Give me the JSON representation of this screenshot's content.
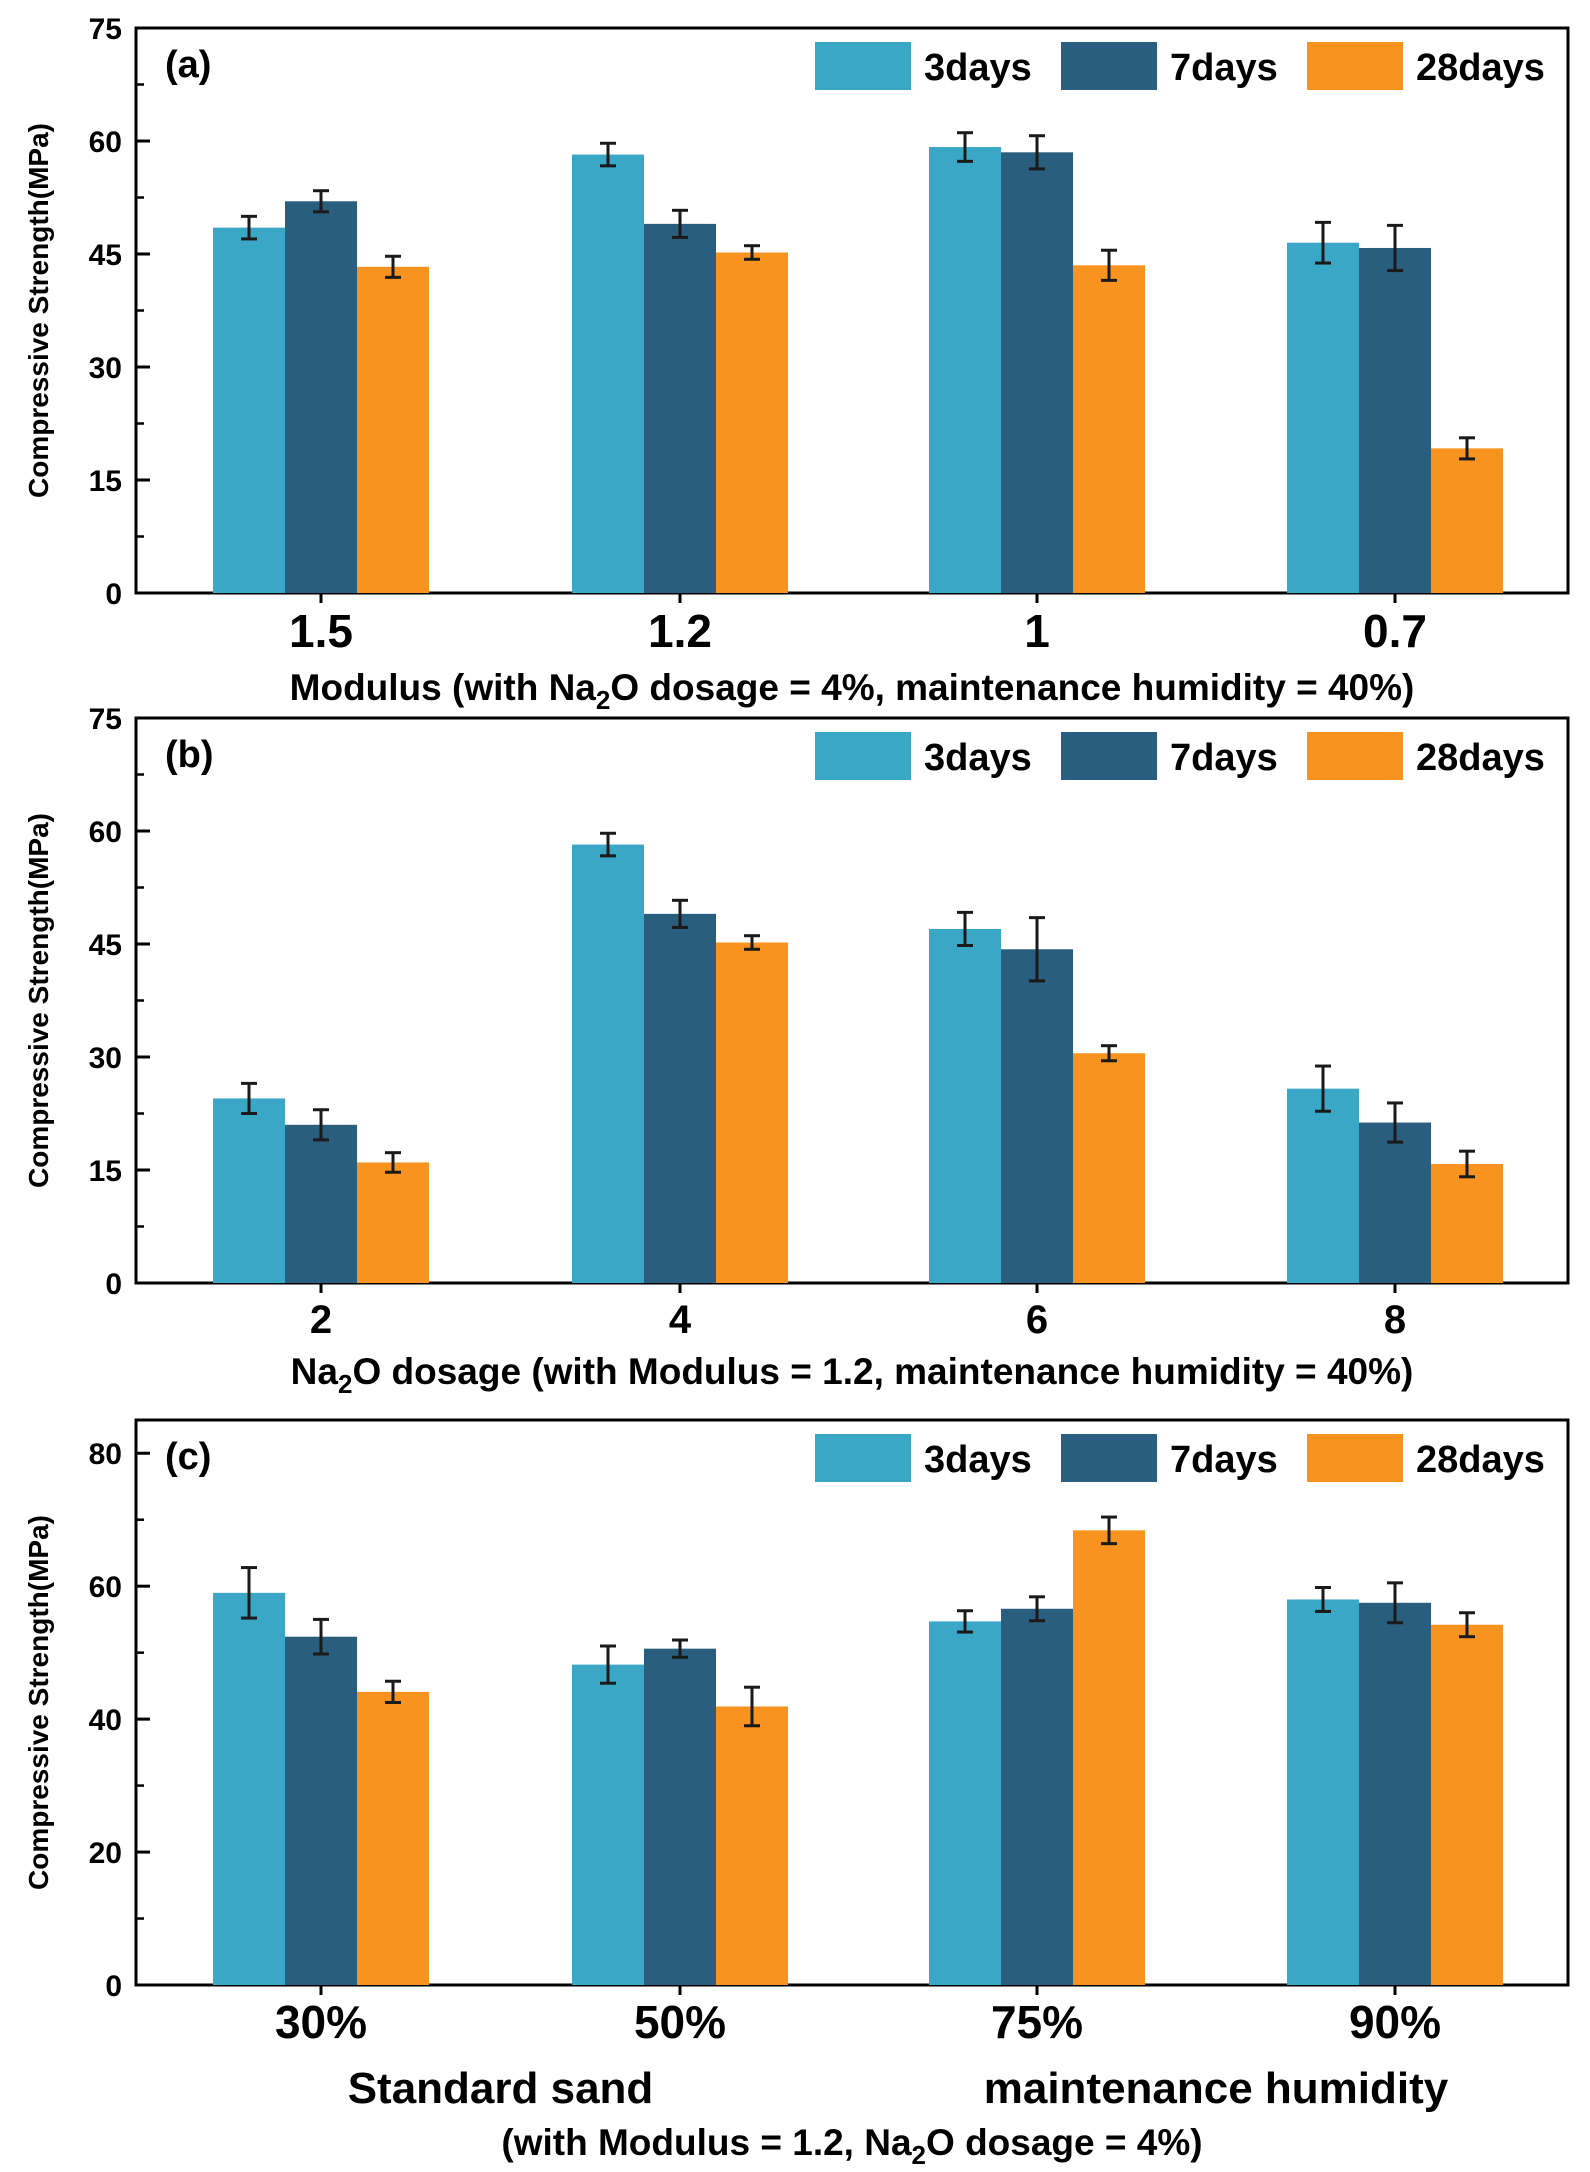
{
  "chart_data": [
    {
      "type": "bar",
      "panel_label": "(a)",
      "categories": [
        "1.5",
        "1.2",
        "1",
        "0.7"
      ],
      "series": [
        {
          "name": "3days",
          "values": [
            48.5,
            58.2,
            59.2,
            46.5
          ],
          "errors": [
            1.5,
            1.5,
            1.9,
            2.7
          ]
        },
        {
          "name": "7days",
          "values": [
            52.0,
            49.0,
            58.5,
            45.8
          ],
          "errors": [
            1.4,
            1.8,
            2.2,
            3.0
          ]
        },
        {
          "name": "28days",
          "values": [
            43.3,
            45.2,
            43.5,
            19.2
          ],
          "errors": [
            1.4,
            0.9,
            2.0,
            1.4
          ]
        }
      ],
      "ylabel": "Compressive Strength(MPa)",
      "xlabel_pre": "Modulus (with Na",
      "xlabel_sub": "2",
      "xlabel_post": "O dosage = 4%, maintenance humidity = 40%)",
      "ylim": [
        0,
        75
      ],
      "yticks": [
        "0",
        "15",
        "30",
        "45",
        "60",
        "75"
      ],
      "legend_position": "top-right"
    },
    {
      "type": "bar",
      "panel_label": "(b)",
      "categories": [
        "2",
        "4",
        "6",
        "8"
      ],
      "series": [
        {
          "name": "3days",
          "values": [
            24.5,
            58.2,
            47.0,
            25.8
          ],
          "errors": [
            2.0,
            1.5,
            2.2,
            3.0
          ]
        },
        {
          "name": "7days",
          "values": [
            21.0,
            49.0,
            44.3,
            21.3
          ],
          "errors": [
            2.0,
            1.8,
            4.2,
            2.6
          ]
        },
        {
          "name": "28days",
          "values": [
            16.0,
            45.2,
            30.5,
            15.8
          ],
          "errors": [
            1.3,
            0.9,
            1.0,
            1.7
          ]
        }
      ],
      "ylabel": "Compressive Strength(MPa)",
      "xlabel_pre": "Na",
      "xlabel_sub": "2",
      "xlabel_post": "O dosage (with Modulus = 1.2, maintenance humidity = 40%)",
      "ylim": [
        0,
        75
      ],
      "yticks": [
        "0",
        "15",
        "30",
        "45",
        "60",
        "75"
      ],
      "legend_position": "top-right"
    },
    {
      "type": "bar",
      "panel_label": "(c)",
      "categories": [
        "30%",
        "50%",
        "75%",
        "90%"
      ],
      "series": [
        {
          "name": "3days",
          "values": [
            59.0,
            48.2,
            54.7,
            58.0
          ],
          "errors": [
            3.8,
            2.8,
            1.6,
            1.8
          ]
        },
        {
          "name": "7days",
          "values": [
            52.4,
            50.6,
            56.6,
            57.5
          ],
          "errors": [
            2.6,
            1.3,
            1.8,
            3.0
          ]
        },
        {
          "name": "28days",
          "values": [
            44.1,
            41.9,
            68.4,
            54.2
          ],
          "errors": [
            1.6,
            2.9,
            2.0,
            1.8
          ]
        }
      ],
      "ylabel": "Compressive Strength(MPa)",
      "group_labels": [
        "Standard sand",
        "maintenance humidity"
      ],
      "xlabel_pre": "(with Modulus = 1.2, Na",
      "xlabel_sub": "2",
      "xlabel_post": "O dosage = 4%)",
      "ylim": [
        0,
        85
      ],
      "yticks": [
        "0",
        "20",
        "40",
        "60",
        "80"
      ],
      "legend_position": "top-right"
    }
  ],
  "colors": {
    "3days": "#3aa7c6",
    "7days": "#2a5e7e",
    "28days": "#f7931e"
  }
}
